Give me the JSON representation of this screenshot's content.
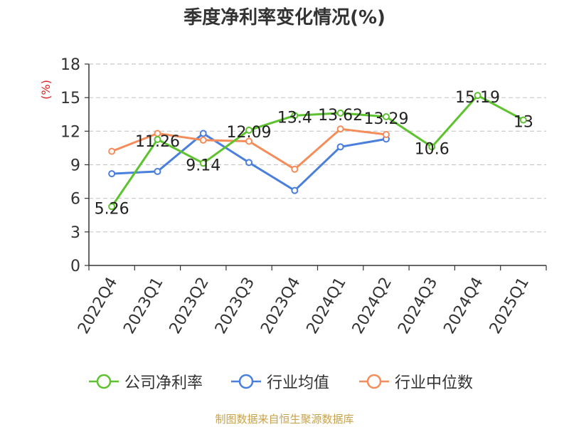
{
  "title": "季度净利率变化情况(%)",
  "source": "制图数据来自恒生聚源数据库",
  "chart_data": {
    "type": "line",
    "title": "季度净利率变化情况(%)",
    "ylabel": "(%)",
    "xlabel": "",
    "categories": [
      "2022Q4",
      "2023Q1",
      "2023Q2",
      "2023Q3",
      "2023Q4",
      "2024Q1",
      "2024Q2",
      "2024Q3",
      "2024Q4",
      "2025Q1"
    ],
    "ylim": [
      0,
      18
    ],
    "yticks": [
      "0",
      "3",
      "6",
      "9",
      "12",
      "15",
      "18"
    ],
    "grid": true,
    "legend_position": "bottom",
    "series": [
      {
        "name": "公司净利率",
        "color": "#5cc22d",
        "values": [
          5.26,
          11.26,
          9.14,
          12.09,
          13.4,
          13.62,
          13.29,
          10.6,
          15.19,
          13
        ],
        "labels": [
          "5.26",
          "11.26",
          "9.14",
          "12.09",
          "13.4",
          "13.62",
          "13.29",
          "10.6",
          "15.19",
          "13"
        ]
      },
      {
        "name": "行业均值",
        "color": "#4a7fdc",
        "values": [
          8.2,
          8.4,
          11.8,
          9.2,
          6.7,
          10.6,
          11.3,
          null,
          null,
          null
        ]
      },
      {
        "name": "行业中位数",
        "color": "#f58d5a",
        "values": [
          10.2,
          11.8,
          11.2,
          11.1,
          8.6,
          12.2,
          11.7,
          null,
          null,
          null
        ]
      }
    ]
  }
}
